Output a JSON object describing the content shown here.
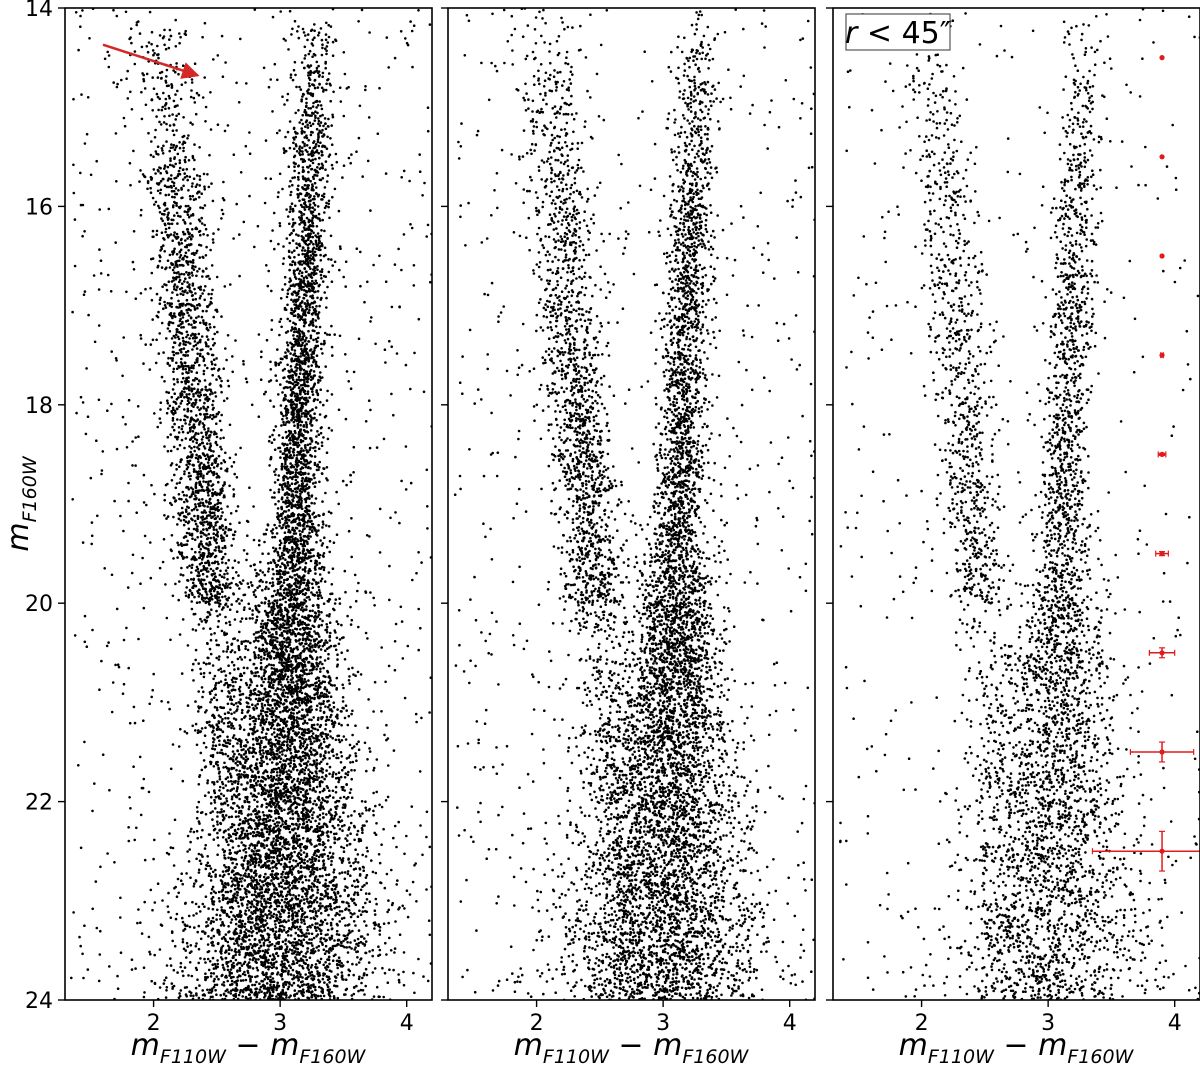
{
  "chart_data": [
    {
      "type": "scatter",
      "panel": "left",
      "xlabel": {
        "base1": "m",
        "sub1": "F110W",
        "minus": " − ",
        "base2": "m",
        "sub2": "F160W"
      },
      "ylabel": {
        "base": "m",
        "sub": "F160W"
      },
      "xlim": [
        1.3,
        4.2
      ],
      "ylim": [
        24,
        14
      ],
      "y_inverted": true,
      "xticks": [
        2,
        3,
        4
      ],
      "yticks": [
        14,
        16,
        18,
        20,
        22,
        24
      ],
      "grid": false,
      "marker_color": "#000000",
      "approx_point_count": 20000,
      "density_profile": [
        {
          "mag_range": [
            14,
            16
          ],
          "blue_sequence_color": 2.1,
          "red_sequence_color": 3.3,
          "relative_density": "sparse"
        },
        {
          "mag_range": [
            16,
            18
          ],
          "blue_sequence_color": 2.15,
          "red_sequence_color": 3.25,
          "relative_density": "low"
        },
        {
          "mag_range": [
            18,
            20
          ],
          "blue_sequence_color": 2.35,
          "red_sequence_color": 3.2,
          "relative_density": "medium"
        },
        {
          "mag_range": [
            20,
            24
          ],
          "main_clump_color": 3.05,
          "relative_density": "very high"
        }
      ],
      "annotations": [
        {
          "type": "arrow",
          "color": "#d62728",
          "from": {
            "x": 1.6,
            "y": 14.37
          },
          "to": {
            "x": 2.35,
            "y": 14.68
          }
        }
      ]
    },
    {
      "type": "scatter",
      "panel": "middle",
      "xlabel": {
        "base1": "m",
        "sub1": "F110W",
        "minus": " − ",
        "base2": "m",
        "sub2": "F160W"
      },
      "xlim": [
        1.3,
        4.2
      ],
      "ylim": [
        24,
        14
      ],
      "y_inverted": true,
      "xticks": [
        2,
        3,
        4
      ],
      "yticks": [
        14,
        16,
        18,
        20,
        22,
        24
      ],
      "grid": false,
      "marker_color": "#000000",
      "approx_point_count": 16000,
      "density_profile": [
        {
          "mag_range": [
            14,
            16
          ],
          "blue_sequence_color": 2.0,
          "red_sequence_color": 3.35,
          "relative_density": "sparse"
        },
        {
          "mag_range": [
            16,
            18
          ],
          "blue_sequence_color": 2.1,
          "red_sequence_color": 3.25,
          "relative_density": "low"
        },
        {
          "mag_range": [
            18,
            20
          ],
          "blue_sequence_color": 2.3,
          "red_sequence_color": 3.2,
          "relative_density": "medium"
        },
        {
          "mag_range": [
            20,
            24
          ],
          "main_clump_color": 3.1,
          "relative_density": "very high"
        }
      ]
    },
    {
      "type": "scatter",
      "panel": "right",
      "xlabel": {
        "base1": "m",
        "sub1": "F110W",
        "minus": " − ",
        "base2": "m",
        "sub2": "F160W"
      },
      "xlim": [
        1.3,
        4.2
      ],
      "ylim": [
        24,
        14
      ],
      "y_inverted": true,
      "xticks": [
        2,
        3,
        4
      ],
      "yticks": [
        14,
        16,
        18,
        20,
        22,
        24
      ],
      "grid": false,
      "marker_color": "#000000",
      "approx_point_count": 9000,
      "label_box": {
        "r": "r",
        "lt": " < ",
        "value": "45″",
        "placement": "top-left"
      },
      "density_profile": [
        {
          "mag_range": [
            14,
            16
          ],
          "blue_sequence_color": 1.95,
          "red_sequence_color": 3.25,
          "relative_density": "sparse"
        },
        {
          "mag_range": [
            16,
            18
          ],
          "blue_sequence_color": 2.15,
          "red_sequence_color": 3.2,
          "relative_density": "low"
        },
        {
          "mag_range": [
            18,
            20
          ],
          "blue_sequence_color": 2.35,
          "red_sequence_color": 3.2,
          "relative_density": "medium"
        },
        {
          "mag_range": [
            20,
            24
          ],
          "main_clump_color": 3.05,
          "relative_density": "high"
        }
      ],
      "error_bars": {
        "color": "#e31a1c",
        "x": 3.9,
        "points": [
          {
            "y": 14.5,
            "xerr": 0.0,
            "yerr": 0.0
          },
          {
            "y": 15.5,
            "xerr": 0.0,
            "yerr": 0.0
          },
          {
            "y": 16.5,
            "xerr": 0.0,
            "yerr": 0.0
          },
          {
            "y": 17.5,
            "xerr": 0.01,
            "yerr": 0.0
          },
          {
            "y": 18.5,
            "xerr": 0.03,
            "yerr": 0.01
          },
          {
            "y": 19.5,
            "xerr": 0.05,
            "yerr": 0.02
          },
          {
            "y": 20.5,
            "xerr": 0.1,
            "yerr": 0.05
          },
          {
            "y": 21.5,
            "xerr": 0.25,
            "yerr": 0.1
          },
          {
            "y": 22.5,
            "xerr": 0.55,
            "yerr": 0.2
          }
        ]
      }
    }
  ]
}
